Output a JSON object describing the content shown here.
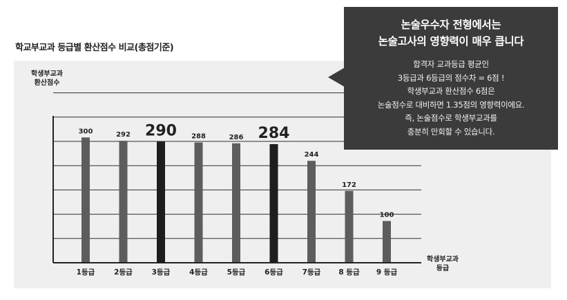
{
  "chart_data": {
    "type": "bar",
    "title": "학교부교과 등급별 환산점수 비교(총점기준)",
    "ylabel": [
      "학생부교과",
      "환산점수"
    ],
    "xlabel": [
      "학생부교과",
      "등급"
    ],
    "categories": [
      "1등급",
      "2등급",
      "3등급",
      "4등급",
      "5등급",
      "6등급",
      "7등급",
      "8 등급",
      "9 등급"
    ],
    "values": [
      300,
      292,
      290,
      288,
      286,
      284,
      244,
      172,
      100
    ],
    "value_labels": [
      "300",
      "292",
      "290",
      "288",
      "286",
      "284",
      "244",
      "172",
      "100"
    ],
    "highlighted": [
      false,
      false,
      true,
      false,
      false,
      true,
      false,
      false,
      false
    ],
    "ylim": [
      0,
      350
    ],
    "grid": true,
    "bar_color": "#5d5d5d",
    "highlight_color": "#1e1e1e"
  },
  "callout": {
    "heading_lines": [
      "논술우수자 전형에서는",
      "논술고사의 영향력이 매우 큽니다"
    ],
    "body_lines": [
      "합격자 교과등급 평균인",
      "3등급과 6등급의 점수차 = 6점 !",
      "학생부교과 환산점수 6점은",
      "논술점수로 대비하면 1.35점의 영향력이에요.",
      "즉, 논술점수로 학생부교과를",
      "충분히 만회할 수 있습니다."
    ],
    "bg_color": "#3b3b3b"
  }
}
